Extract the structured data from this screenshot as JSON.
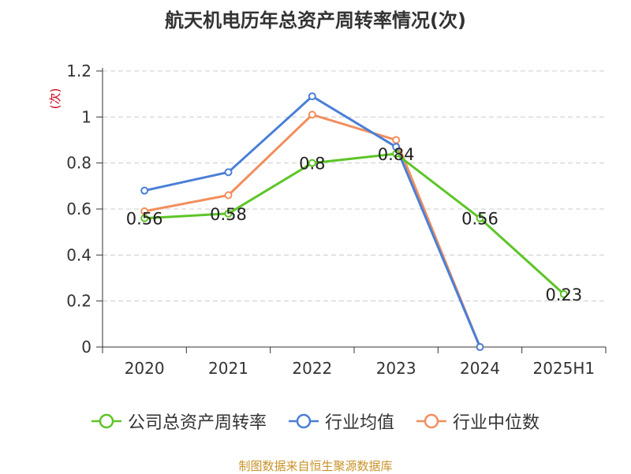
{
  "chart_data": {
    "type": "line",
    "title": "航天机电历年总资产周转率情况(次)",
    "ylabel": "(次)",
    "categories": [
      "2020",
      "2021",
      "2022",
      "2023",
      "2024",
      "2025H1"
    ],
    "ylim": [
      0,
      1.2
    ],
    "yticks": [
      "0",
      "0.2",
      "0.4",
      "0.6",
      "0.8",
      "1",
      "1.2"
    ],
    "grid": true,
    "legend_position": "bottom",
    "series": [
      {
        "name": "公司总资产周转率",
        "color": "#5dc528",
        "values": [
          0.56,
          0.58,
          0.8,
          0.84,
          0.56,
          0.23
        ],
        "labels": [
          "0.56",
          "0.58",
          "0.8",
          "0.84",
          "0.56",
          "0.23"
        ]
      },
      {
        "name": "行业均值",
        "color": "#4a7fd6",
        "values": [
          0.68,
          0.76,
          1.09,
          0.87,
          0,
          null
        ]
      },
      {
        "name": "行业中位数",
        "color": "#f28e5d",
        "values": [
          0.59,
          0.66,
          1.01,
          0.9,
          0,
          null
        ]
      }
    ]
  },
  "source": "制图数据来自恒生聚源数据库"
}
